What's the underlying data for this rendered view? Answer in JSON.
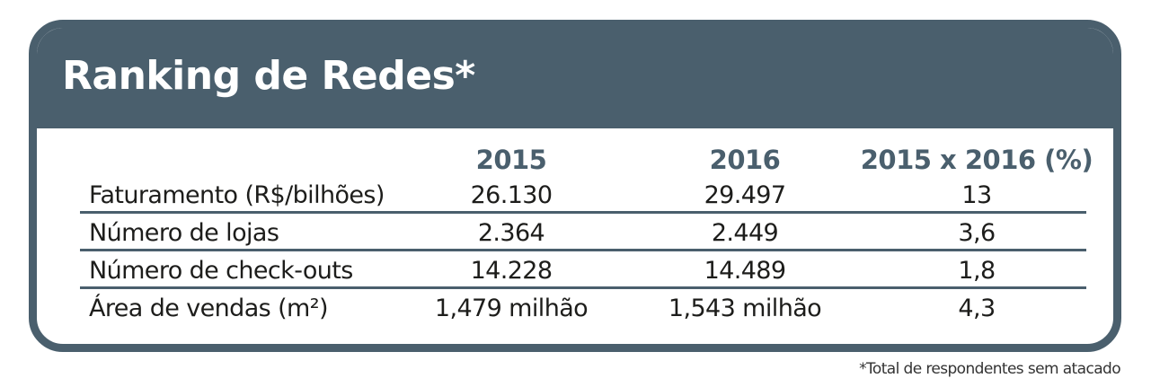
{
  "chart_data": {
    "type": "table",
    "title": "Ranking de Redes*",
    "columns": [
      "",
      "2015",
      "2016",
      "2015 x 2016 (%)"
    ],
    "rows": [
      {
        "label": "Faturamento (R$/bilhões)",
        "values": [
          "26.130",
          "29.497",
          "13"
        ]
      },
      {
        "label": "Número de lojas",
        "values": [
          "2.364",
          "2.449",
          "3,6"
        ]
      },
      {
        "label": "Número de check-outs",
        "values": [
          "14.228",
          "14.489",
          "1,8"
        ]
      },
      {
        "label": "Área de vendas (m²)",
        "values": [
          "1,479 milhão",
          "1,543 milhão",
          "4,3"
        ]
      }
    ],
    "footnote": "*Total de respondentes sem atacado"
  },
  "colors": {
    "header_background": "#4a5f6d",
    "header_text": "#ffffff",
    "column_header_text": "#4a5f6d",
    "body_text": "#1d1d1b"
  }
}
